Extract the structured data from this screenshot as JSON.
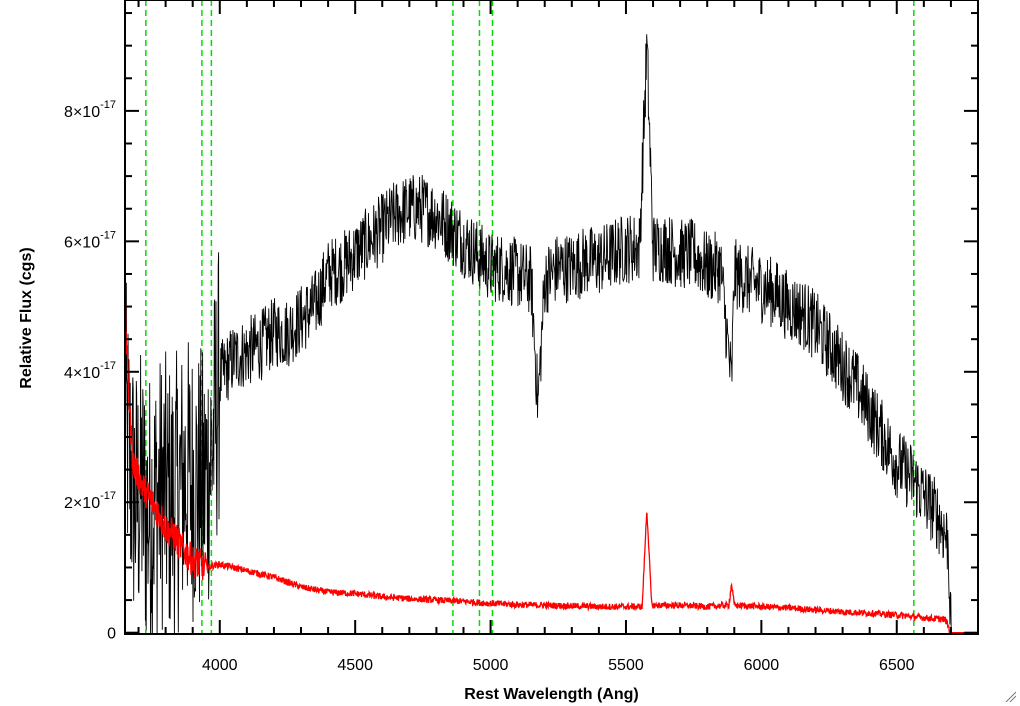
{
  "chart_data": {
    "type": "line",
    "title": "",
    "xlabel": "Rest Wavelength (Ang)",
    "ylabel": "Relative Flux (cgs)",
    "xlim": [
      3650,
      6800
    ],
    "ylim": [
      -2e-19,
      9.7e-17
    ],
    "x_ticks": [
      {
        "value": 4000,
        "label": "4000"
      },
      {
        "value": 4500,
        "label": "4500"
      },
      {
        "value": 5000,
        "label": "5000"
      },
      {
        "value": 5500,
        "label": "5500"
      },
      {
        "value": 6000,
        "label": "6000"
      },
      {
        "value": 6500,
        "label": "6500"
      }
    ],
    "y_ticks": [
      {
        "value": 0,
        "mantissa": "0",
        "exponent": ""
      },
      {
        "value": 2e-17,
        "mantissa": "2×10",
        "exponent": "-17"
      },
      {
        "value": 4e-17,
        "mantissa": "4×10",
        "exponent": "-17"
      },
      {
        "value": 6e-17,
        "mantissa": "6×10",
        "exponent": "-17"
      },
      {
        "value": 8e-17,
        "mantissa": "8×10",
        "exponent": "-17"
      }
    ],
    "x_minor_step": 100,
    "y_minor_step": 5e-18,
    "grid": false,
    "reference_lines": [
      3727,
      3934,
      3969,
      4861,
      4959,
      5007,
      6563
    ],
    "series": [
      {
        "color": "#000000",
        "x": [
          3650,
          3670,
          3690,
          3710,
          3730,
          3760,
          3790,
          3820,
          3850,
          3880,
          3910,
          3940,
          3970,
          4000,
          4050,
          4100,
          4150,
          4200,
          4250,
          4300,
          4350,
          4400,
          4450,
          4500,
          4550,
          4600,
          4650,
          4700,
          4750,
          4800,
          4850,
          4900,
          4950,
          5000,
          5050,
          5100,
          5150,
          5175,
          5200,
          5250,
          5300,
          5350,
          5400,
          5450,
          5500,
          5550,
          5577,
          5600,
          5650,
          5700,
          5750,
          5800,
          5850,
          5890,
          5900,
          5950,
          6000,
          6050,
          6100,
          6150,
          6200,
          6250,
          6300,
          6350,
          6400,
          6450,
          6500,
          6550,
          6600,
          6650,
          6690,
          6700,
          6720,
          6800
        ],
        "y": [
          3.4e-17,
          2.5e-17,
          2e-17,
          2.2e-17,
          1.8e-17,
          2e-17,
          2.2e-17,
          2e-17,
          2.2e-17,
          2.4e-17,
          2.3e-17,
          2.2e-17,
          2.8e-17,
          3.9e-17,
          4.2e-17,
          4.3e-17,
          4.4e-17,
          4.6e-17,
          4.6e-17,
          4.8e-17,
          5e-17,
          5.5e-17,
          5.6e-17,
          5.8e-17,
          6e-17,
          6.2e-17,
          6.4e-17,
          6.5e-17,
          6.5e-17,
          6.4e-17,
          6.2e-17,
          6e-17,
          5.8e-17,
          5.6e-17,
          5.6e-17,
          5.5e-17,
          5.4e-17,
          3.5e-17,
          5.4e-17,
          5.6e-17,
          5.6e-17,
          5.7e-17,
          5.7e-17,
          5.8e-17,
          5.9e-17,
          5.9e-17,
          9e-17,
          5.9e-17,
          5.9e-17,
          5.8e-17,
          5.8e-17,
          5.6e-17,
          5.6e-17,
          3.8e-17,
          5.5e-17,
          5.4e-17,
          5.3e-17,
          5.2e-17,
          5e-17,
          4.9e-17,
          4.7e-17,
          4.4e-17,
          4.1e-17,
          3.8e-17,
          3.4e-17,
          3e-17,
          2.6e-17,
          2.4e-17,
          2.1e-17,
          1.8e-17,
          1.4e-17,
          0.0,
          0.0,
          0.0
        ]
      },
      {
        "color": "#ff0000",
        "x": [
          3650,
          3660,
          3670,
          3680,
          3700,
          3720,
          3750,
          3780,
          3800,
          3830,
          3860,
          3900,
          3950,
          4000,
          4100,
          4200,
          4300,
          4400,
          4500,
          4600,
          4700,
          4800,
          4900,
          5000,
          5100,
          5200,
          5300,
          5400,
          5500,
          5560,
          5577,
          5595,
          5650,
          5700,
          5800,
          5880,
          5890,
          5900,
          6000,
          6100,
          6200,
          6300,
          6400,
          6500,
          6600,
          6680,
          6700,
          6710,
          6800
        ],
        "y": [
          5e-17,
          4e-17,
          3.2e-17,
          2.6e-17,
          2.4e-17,
          2.2e-17,
          2e-17,
          1.8e-17,
          1.6e-17,
          1.5e-17,
          1.3e-17,
          1.1e-17,
          1e-17,
          1.05e-17,
          9.5e-18,
          8.5e-18,
          7e-18,
          6.2e-18,
          6e-18,
          5.5e-18,
          5.2e-18,
          5e-18,
          4.8e-18,
          4.5e-18,
          4.3e-18,
          4.2e-18,
          4.1e-18,
          4e-18,
          4e-18,
          4e-18,
          1.9e-17,
          4.2e-18,
          4.2e-18,
          4.2e-18,
          4e-18,
          4.2e-18,
          7.5e-18,
          4.2e-18,
          4e-18,
          3.8e-18,
          3.5e-18,
          3.2e-18,
          3e-18,
          2.7e-18,
          2.3e-18,
          2e-18,
          0.0,
          0.0,
          0.0
        ]
      }
    ]
  }
}
